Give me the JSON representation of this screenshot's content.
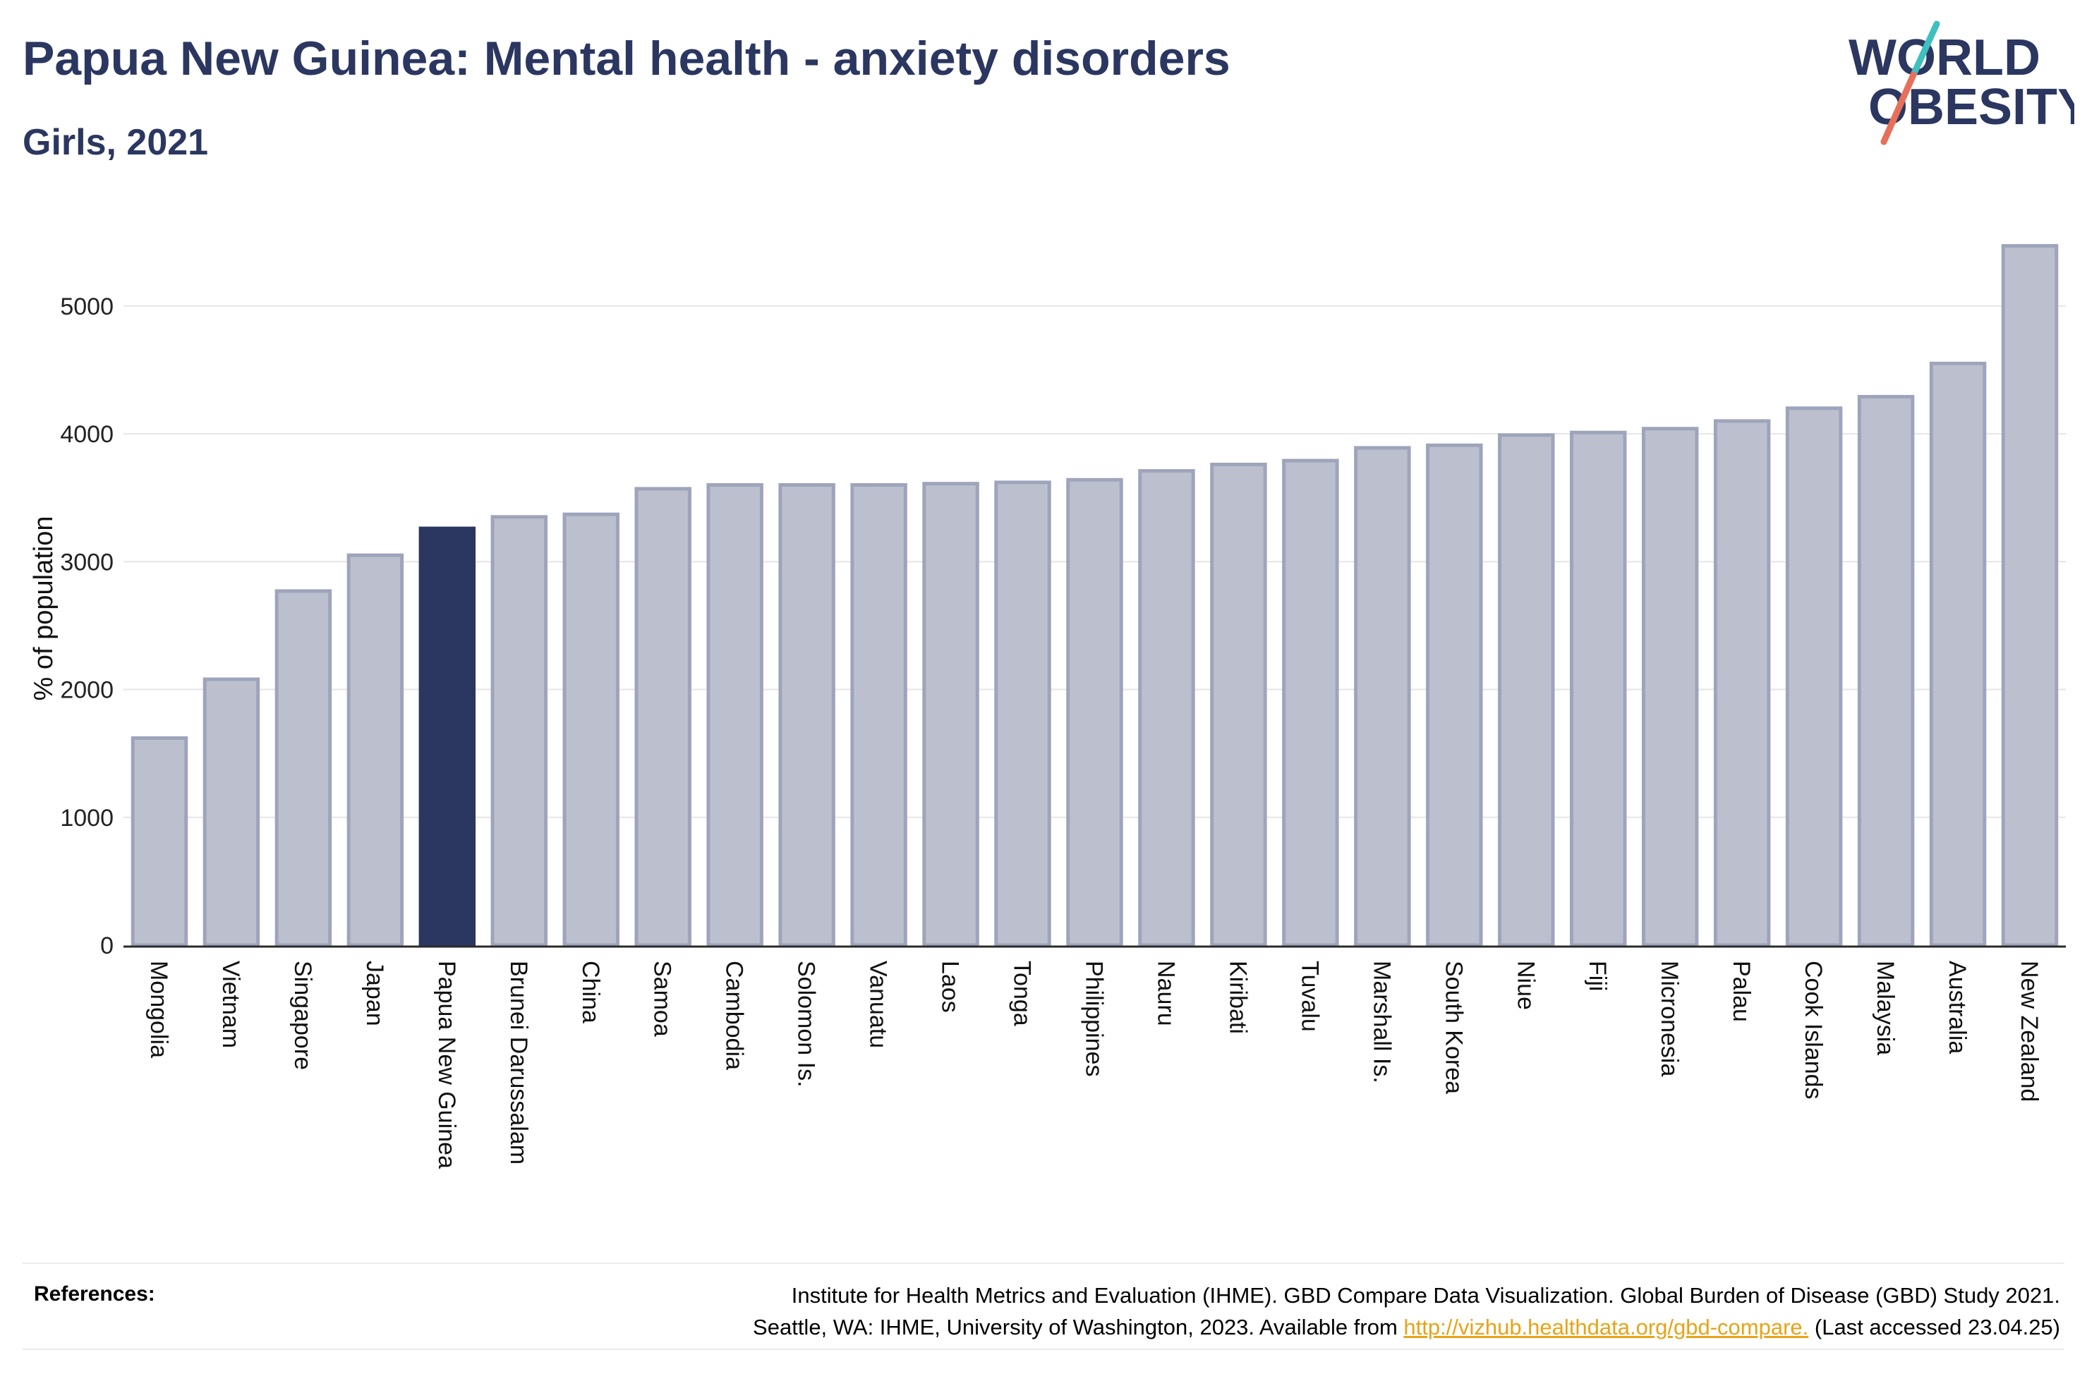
{
  "header": {
    "title": "Papua New Guinea: Mental health - anxiety disorders",
    "subtitle": "Girls, 2021"
  },
  "logo": {
    "line1": "WORLD",
    "line2": "OBESITY",
    "colors": {
      "text": "#2b3760",
      "slash_teal": "#3fbfbf",
      "slash_coral": "#e8705a"
    }
  },
  "colors": {
    "bar": "#bcc0ce",
    "bar_border": "#9ea4ba",
    "highlight": "#2b3760",
    "grid": "#e6e6e6",
    "axis": "#2b2b2b"
  },
  "chart_data": {
    "type": "bar",
    "title": "Papua New Guinea: Mental health - anxiety disorders",
    "subtitle": "Girls, 2021",
    "ylabel": "% of population",
    "xlabel": "",
    "ylim": [
      0,
      5600
    ],
    "yticks": [
      0,
      1000,
      2000,
      3000,
      4000,
      5000
    ],
    "grid": true,
    "highlight": "Papua New Guinea",
    "categories": [
      "Mongolia",
      "Vietnam",
      "Singapore",
      "Japan",
      "Papua New Guinea",
      "Brunei Darussalam",
      "China",
      "Samoa",
      "Cambodia",
      "Solomon Is.",
      "Vanuatu",
      "Laos",
      "Tonga",
      "Philippines",
      "Nauru",
      "Kiribati",
      "Tuvalu",
      "Marshall Is.",
      "South Korea",
      "Niue",
      "Fiji",
      "Micronesia",
      "Palau",
      "Cook Islands",
      "Malaysia",
      "Australia",
      "New Zealand"
    ],
    "values": [
      1620,
      2080,
      2770,
      3050,
      3260,
      3350,
      3370,
      3570,
      3600,
      3600,
      3600,
      3610,
      3620,
      3640,
      3710,
      3760,
      3790,
      3890,
      3910,
      3990,
      4010,
      4040,
      4100,
      4200,
      4290,
      4550,
      5470
    ]
  },
  "references": {
    "label": "References:",
    "line1": "Institute for Health Metrics and Evaluation (IHME). GBD Compare Data Visualization. Global Burden of Disease (GBD) Study 2021.",
    "line2_prefix": "Seattle, WA: IHME, University of Washington, 2023. Available from ",
    "link": "http://vizhub.healthdata.org/gbd-compare.",
    "line2_suffix": " (Last accessed 23.04.25)"
  }
}
